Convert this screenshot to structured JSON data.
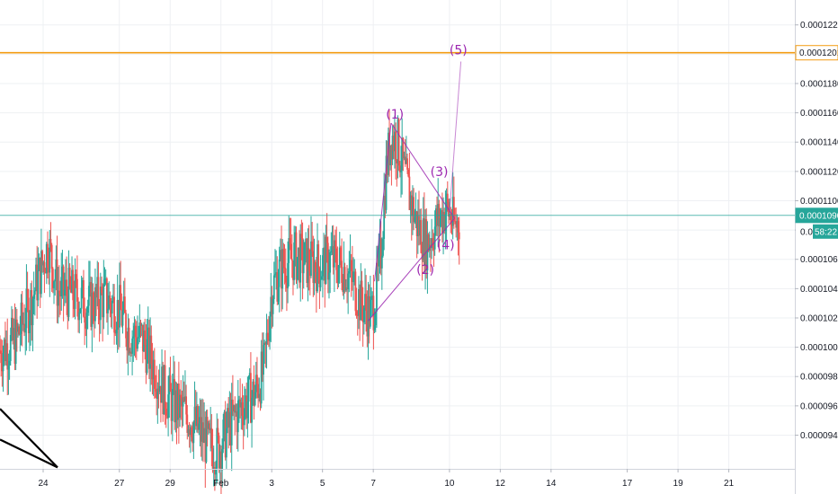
{
  "chart_data": {
    "type": "candlestick",
    "title": "",
    "xlabel": "",
    "ylabel": "",
    "ylim": [
      9.17e-05,
      0.0001237
    ],
    "y_ticks": [
      "0.0000940",
      "0.0000960",
      "0.0000980",
      "0.0001000",
      "0.0001020",
      "0.0001040",
      "0.0001060",
      "0.0001080",
      "0.0001100",
      "0.0001120",
      "0.0001140",
      "0.0001160",
      "0.0001180",
      "0.0001200",
      "0.0001220"
    ],
    "x_ticks": [
      {
        "label": "24",
        "day": 24
      },
      {
        "label": "27",
        "day": 27
      },
      {
        "label": "29",
        "day": 29
      },
      {
        "label": "Feb",
        "day": 31
      },
      {
        "label": "3",
        "day": 33
      },
      {
        "label": "5",
        "day": 35
      },
      {
        "label": "7",
        "day": 37
      },
      {
        "label": "10",
        "day": 40
      },
      {
        "label": "12",
        "day": 42
      },
      {
        "label": "14",
        "day": 44
      },
      {
        "label": "17",
        "day": 47
      },
      {
        "label": "19",
        "day": 49
      },
      {
        "label": "21",
        "day": 51
      }
    ],
    "x_range_days": [
      22.3,
      53.6
    ],
    "grid": true,
    "price_series": [
      [
        22.3,
        9.98e-05
      ],
      [
        22.9,
        0.0001004
      ],
      [
        23.5,
        0.000103
      ],
      [
        24.0,
        0.0001058
      ],
      [
        24.2,
        0.000107
      ],
      [
        24.6,
        0.0001038
      ],
      [
        25.2,
        0.0001036
      ],
      [
        25.8,
        0.0001028
      ],
      [
        26.4,
        0.0001034
      ],
      [
        27.0,
        0.0001025
      ],
      [
        27.4,
        0.000101
      ],
      [
        27.9,
        0.0001006
      ],
      [
        28.3,
        9.9e-05
      ],
      [
        28.8,
        9.68e-05
      ],
      [
        29.2,
        9.6e-05
      ],
      [
        29.6,
        9.56e-05
      ],
      [
        30.1,
        9.44e-05
      ],
      [
        30.5,
        9.33e-05
      ],
      [
        30.9,
        9.3e-05
      ],
      [
        31.3,
        9.45e-05
      ],
      [
        31.8,
        9.6e-05
      ],
      [
        32.3,
        9.68e-05
      ],
      [
        32.7,
        9.85e-05
      ],
      [
        33.0,
        0.000104
      ],
      [
        33.4,
        0.0001055
      ],
      [
        33.9,
        0.0001062
      ],
      [
        34.4,
        0.0001058
      ],
      [
        34.9,
        0.0001055
      ],
      [
        35.3,
        0.000106
      ],
      [
        35.8,
        0.0001055
      ],
      [
        36.2,
        0.0001045
      ],
      [
        36.5,
        0.000103
      ],
      [
        36.9,
        0.0001022
      ],
      [
        37.1,
        0.0001035
      ],
      [
        37.3,
        0.0001065
      ],
      [
        37.5,
        0.000112
      ],
      [
        37.7,
        0.0001145
      ],
      [
        37.95,
        0.000114
      ],
      [
        38.3,
        0.0001112
      ],
      [
        38.7,
        0.0001085
      ],
      [
        39.1,
        0.000107
      ],
      [
        39.5,
        0.0001085
      ],
      [
        39.9,
        0.0001095
      ],
      [
        40.2,
        0.0001082
      ],
      [
        40.4,
        0.0001088
      ]
    ],
    "horizontal_lines": [
      {
        "price": 0.0001201,
        "color": "#f39c12",
        "label": "0.0001201"
      },
      {
        "price": 0.000109,
        "color": "#26a69a",
        "label": "0.0001090"
      }
    ],
    "last_price_countdown": "58:22",
    "partial_tick_label": "0.00",
    "up_color": "#26a69a",
    "down_color": "#ef5350",
    "pattern_color": "#9c27b0",
    "wave_labels": [
      {
        "text": "(1)",
        "day": 37.85,
        "price": 0.0001156
      },
      {
        "text": "(2)",
        "day": 39.05,
        "price": 0.000105
      },
      {
        "text": "(3)",
        "day": 39.6,
        "price": 0.0001117
      },
      {
        "text": "(4)",
        "day": 39.85,
        "price": 0.0001067
      },
      {
        "text": "(5)",
        "day": 40.35,
        "price": 0.00012
      }
    ]
  }
}
